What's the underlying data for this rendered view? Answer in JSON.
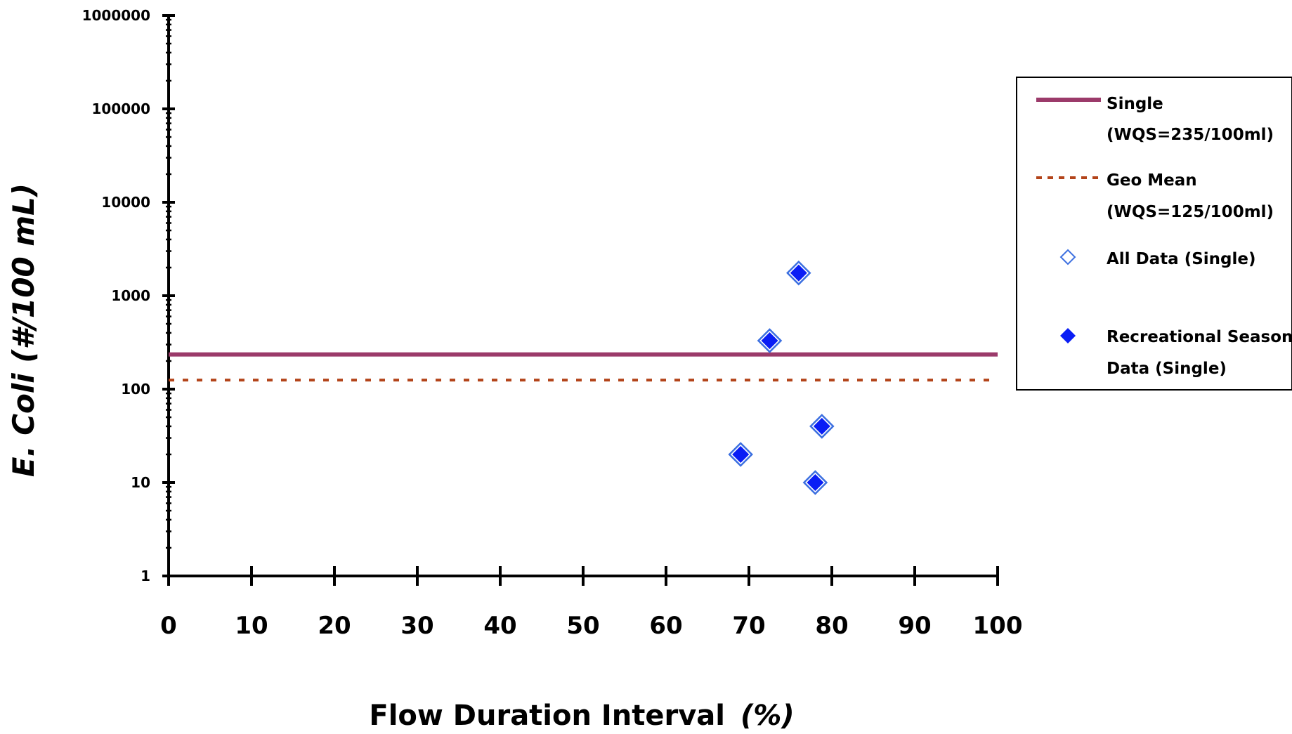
{
  "chart_data": {
    "type": "scatter",
    "x_axis": {
      "label": "Flow Duration Interval",
      "label_suffix": "(%)",
      "range": [
        0,
        100
      ],
      "ticks": [
        "0",
        "10",
        "20",
        "30",
        "40",
        "50",
        "60",
        "70",
        "80",
        "90",
        "100"
      ]
    },
    "y_axis": {
      "label": "E. Coli (#/100 mL)",
      "scale": "log",
      "range": [
        1,
        1000000
      ],
      "ticks": [
        "1000000",
        "100000",
        "10000",
        "1000",
        "100",
        "10",
        "1"
      ]
    },
    "grid": false,
    "legend_position": "right",
    "lines": [
      {
        "legend_line1": "Single",
        "legend_line2": "(WQS=235/100ml)",
        "y": 235,
        "x_range": [
          0,
          100
        ],
        "style": "solid",
        "color": "#9b3a6a"
      },
      {
        "legend_line1": "Geo Mean",
        "legend_line2": "(WQS=125/100ml)",
        "y": 125,
        "x_range": [
          0,
          100
        ],
        "style": "dotted",
        "color": "#b3441a"
      }
    ],
    "series": [
      {
        "name": "All Data (Single)",
        "marker": "diamond-open",
        "color": "#3b6fe0",
        "points": [
          {
            "x": 69,
            "y": 20
          },
          {
            "x": 72.5,
            "y": 330
          },
          {
            "x": 76,
            "y": 1750
          },
          {
            "x": 78,
            "y": 10
          },
          {
            "x": 78.8,
            "y": 40
          }
        ]
      },
      {
        "name_line1": "Recreational Season",
        "name_line2": "Data (Single)",
        "marker": "diamond-filled",
        "color": "#0a1ef5",
        "points": [
          {
            "x": 69,
            "y": 20
          },
          {
            "x": 72.5,
            "y": 330
          },
          {
            "x": 76,
            "y": 1750
          },
          {
            "x": 78,
            "y": 10
          },
          {
            "x": 78.8,
            "y": 40
          }
        ]
      }
    ]
  }
}
